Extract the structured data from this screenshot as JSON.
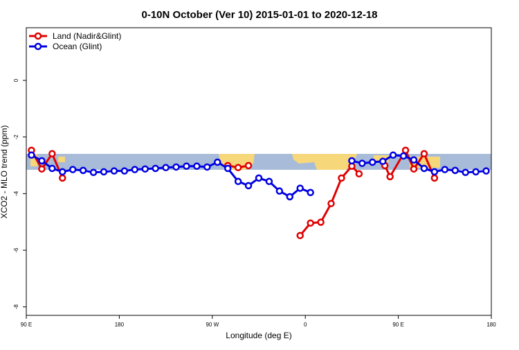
{
  "chart_data": {
    "type": "line",
    "title": "0-10N October (Ver 10)   2015-01-01 to 2020-12-18",
    "x_label": "Longitude (deg E)",
    "y_label": "XCO2 - MLO trend (ppm)",
    "xlim": [
      90,
      540
    ],
    "ylim": [
      -8.3,
      1.86
    ],
    "xticks": [
      {
        "value": 90,
        "label": "90 E"
      },
      180,
      {
        "value": 270,
        "label": "90 W"
      },
      {
        "value": 360,
        "label": "0"
      },
      {
        "value": 450,
        "label": "90 E"
      },
      {
        "value": 540,
        "label": "180"
      }
    ],
    "yticks": [
      0,
      -2,
      -4,
      -6,
      -8
    ],
    "legend": "top-left",
    "series": [
      {
        "name": "Land (Nadir&Glint)",
        "color": "#e00000",
        "x": [
          95,
          105,
          115,
          125,
          200,
          285,
          295,
          305,
          330,
          355,
          365,
          375,
          385,
          395,
          405,
          412,
          425,
          437,
          442,
          457,
          465,
          475,
          485
        ],
        "values": [
          -2.47,
          -3.13,
          -2.59,
          -3.45,
          null,
          -3.01,
          -3.08,
          -3.01,
          null,
          -5.48,
          -5.04,
          -5.01,
          -4.35,
          -3.45,
          -3.03,
          -3.3,
          null,
          -3.01,
          -3.4,
          -2.47,
          -3.13,
          -2.59,
          -3.45
        ]
      },
      {
        "name": "Ocean (Glint)",
        "color": "#0000e0",
        "x": [
          95,
          105,
          115,
          125,
          135,
          145,
          155,
          165,
          175,
          185,
          195,
          205,
          215,
          225,
          235,
          245,
          255,
          265,
          275,
          285,
          295,
          305,
          315,
          325,
          335,
          345,
          355,
          365,
          385,
          405,
          415,
          425,
          435,
          445,
          455,
          465,
          475,
          485,
          495,
          505,
          515,
          525,
          535
        ],
        "values": [
          -2.64,
          -2.84,
          -3.11,
          -3.23,
          -3.15,
          -3.18,
          -3.25,
          -3.23,
          -3.2,
          -3.2,
          -3.15,
          -3.13,
          -3.11,
          -3.08,
          -3.06,
          -3.03,
          -3.03,
          -3.06,
          -2.89,
          -3.11,
          -3.57,
          -3.72,
          -3.45,
          -3.57,
          -3.91,
          -4.11,
          -3.81,
          -3.96,
          null,
          -2.84,
          -2.93,
          -2.89,
          -2.86,
          -2.64,
          -2.67,
          -2.81,
          -3.11,
          -3.23,
          -3.15,
          -3.18,
          -3.25,
          -3.23,
          -3.2
        ]
      }
    ]
  }
}
